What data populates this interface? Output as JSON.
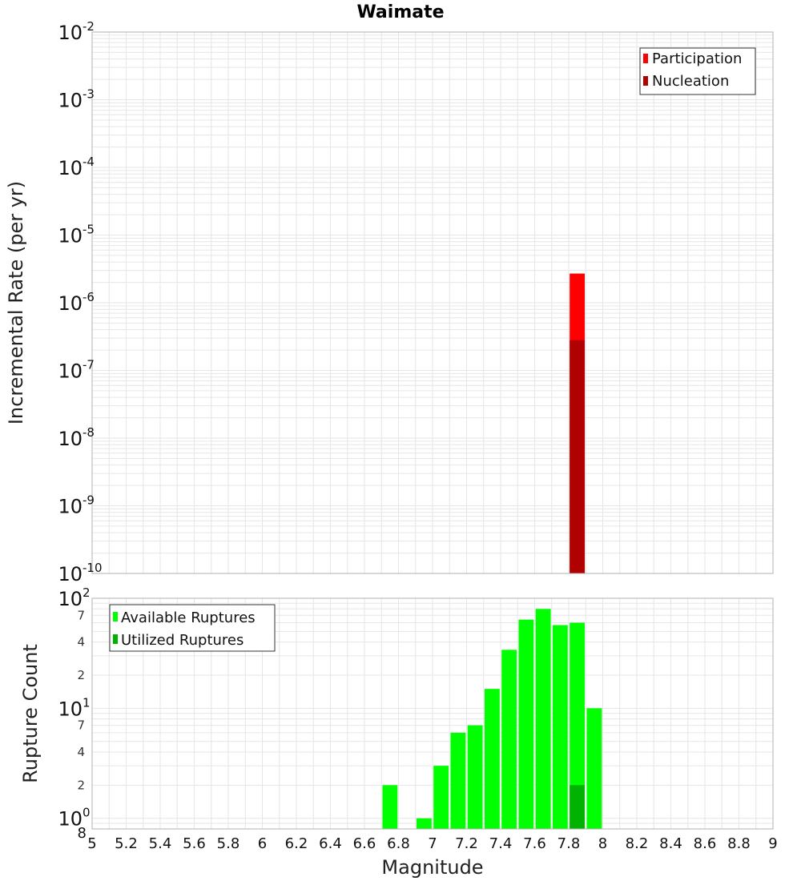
{
  "chart_data": [
    {
      "type": "bar",
      "title": "Waimate",
      "ylabel": "Incremental Rate (per yr)",
      "y_scale": "log",
      "ylim": [
        1e-10,
        0.01
      ],
      "xlim": [
        5,
        9
      ],
      "bin_width": 0.1,
      "y_major_ticks": [
        {
          "base": "10",
          "exp": "-10",
          "value": 1e-10
        },
        {
          "base": "10",
          "exp": "-9",
          "value": 1e-09
        },
        {
          "base": "10",
          "exp": "-8",
          "value": 1e-08
        },
        {
          "base": "10",
          "exp": "-7",
          "value": 1e-07
        },
        {
          "base": "10",
          "exp": "-6",
          "value": 1e-06
        },
        {
          "base": "10",
          "exp": "-5",
          "value": 1e-05
        },
        {
          "base": "10",
          "exp": "-4",
          "value": 0.0001
        },
        {
          "base": "10",
          "exp": "-3",
          "value": 0.001
        },
        {
          "base": "10",
          "exp": "-2",
          "value": 0.01
        }
      ],
      "series": [
        {
          "name": "Participation",
          "color": "#ff0000",
          "points": [
            {
              "x": 7.85,
              "y": 2.7e-06
            }
          ]
        },
        {
          "name": "Nucleation",
          "color": "#b00000",
          "points": [
            {
              "x": 7.85,
              "y": 2.8e-07
            }
          ]
        }
      ],
      "legend_position": "top-right",
      "grid": true
    },
    {
      "type": "bar",
      "xlabel": "Magnitude",
      "ylabel": "Rupture Count",
      "y_scale": "log",
      "ylim": [
        0.8,
        100
      ],
      "xlim": [
        5,
        9
      ],
      "bin_width": 0.1,
      "x_ticks": [
        "5",
        "5.2",
        "5.4",
        "5.6",
        "5.8",
        "6",
        "6.2",
        "6.4",
        "6.6",
        "6.8",
        "7",
        "7.2",
        "7.4",
        "7.6",
        "7.8",
        "8",
        "8.2",
        "8.4",
        "8.6",
        "8.8",
        "9"
      ],
      "y_major_ticks": [
        {
          "base": "10",
          "exp": "0",
          "value": 1
        },
        {
          "base": "10",
          "exp": "1",
          "value": 10
        },
        {
          "base": "10",
          "exp": "2",
          "value": 100
        }
      ],
      "y_minor_labels": [
        {
          "label": "2",
          "value": 2
        },
        {
          "label": "4",
          "value": 4
        },
        {
          "label": "7",
          "value": 7
        },
        {
          "label": "2",
          "value": 20
        },
        {
          "label": "4",
          "value": 40
        },
        {
          "label": "7",
          "value": 70
        }
      ],
      "y_bottom_label": {
        "label": "8",
        "value": 0.8
      },
      "series": [
        {
          "name": "Available Ruptures",
          "color": "#00ff00",
          "points": [
            {
              "x": 6.75,
              "y": 2
            },
            {
              "x": 6.95,
              "y": 1
            },
            {
              "x": 7.05,
              "y": 3
            },
            {
              "x": 7.15,
              "y": 6
            },
            {
              "x": 7.25,
              "y": 7
            },
            {
              "x": 7.35,
              "y": 15
            },
            {
              "x": 7.45,
              "y": 34
            },
            {
              "x": 7.55,
              "y": 64
            },
            {
              "x": 7.65,
              "y": 80
            },
            {
              "x": 7.75,
              "y": 57
            },
            {
              "x": 7.85,
              "y": 60
            },
            {
              "x": 7.95,
              "y": 10
            }
          ]
        },
        {
          "name": "Utilized Ruptures",
          "color": "#00b300",
          "points": [
            {
              "x": 7.85,
              "y": 2
            }
          ]
        }
      ],
      "legend_position": "top-left",
      "grid": true
    }
  ]
}
